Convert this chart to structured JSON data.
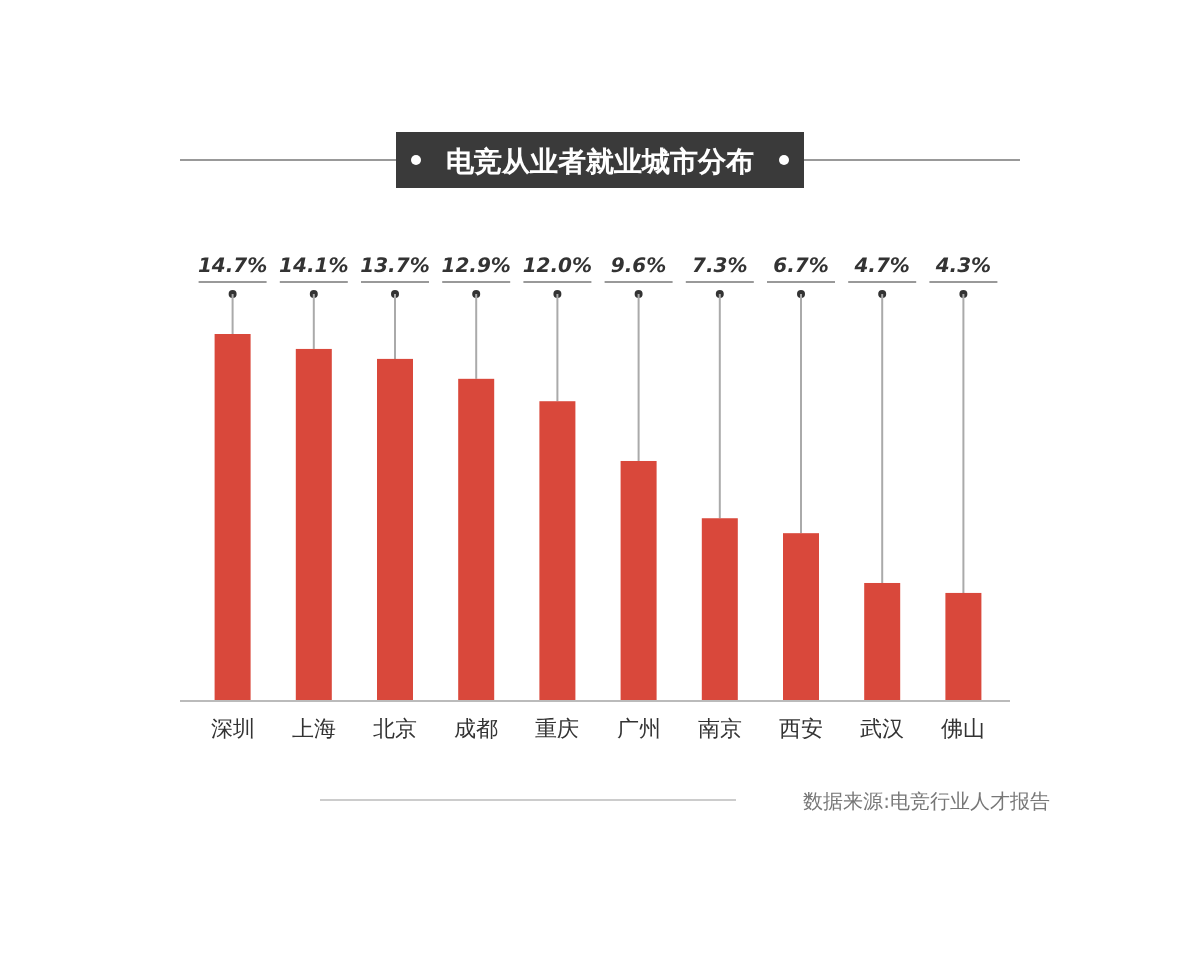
{
  "chart_data": {
    "type": "bar",
    "title": "电竞从业者就业城市分布",
    "categories": [
      "深圳",
      "上海",
      "北京",
      "成都",
      "重庆",
      "广州",
      "南京",
      "西安",
      "武汉",
      "佛山"
    ],
    "values": [
      14.7,
      14.1,
      13.7,
      12.9,
      12.0,
      9.6,
      7.3,
      6.7,
      4.7,
      4.3
    ],
    "value_labels": [
      "14.7%",
      "14.1%",
      "13.7%",
      "12.9%",
      "12.0%",
      "9.6%",
      "7.3%",
      "6.7%",
      "4.7%",
      "4.3%"
    ],
    "color": "#d9483b",
    "annotations": [
      "数据来源:电竞行业人才报告"
    ]
  }
}
